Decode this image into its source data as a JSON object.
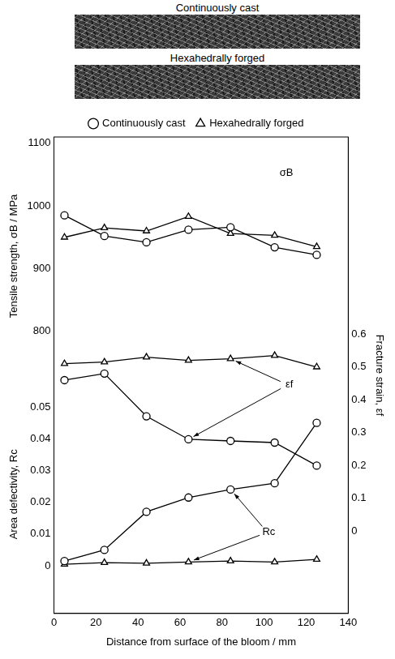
{
  "micrographs": [
    {
      "title": "Continuously cast"
    },
    {
      "title": "Hexahedrally forged"
    }
  ],
  "chart_data": [
    {
      "type": "line",
      "y_label": "Tensile strength, σB / MPa",
      "ylim": [
        730,
        1110
      ],
      "yticks": [
        800,
        900,
        1000,
        1100
      ],
      "y2_label": "Fracture strain, εf",
      "y2lim": [
        -0.25,
        1.2
      ],
      "y2ticks": [
        0,
        0.1,
        0.2,
        0.3,
        0.4,
        0.5,
        0.6
      ],
      "legend": "top",
      "grid": false,
      "annotations": [
        "σB",
        "εf"
      ],
      "x": [
        5,
        24,
        44,
        64,
        84,
        105,
        125
      ],
      "series": [
        {
          "name": "Continuously cast",
          "color": "#000000",
          "marker": "circle",
          "line_style": "solid",
          "values": [
            985,
            952,
            942,
            962,
            966,
            934,
            922
          ]
        },
        {
          "name": "Hexahedrally forged",
          "color": "#000000",
          "marker": "triangle",
          "line_style": "solid",
          "values": [
            950,
            965,
            960,
            983,
            956,
            953,
            935
          ]
        },
        {
          "name": "Continuously cast",
          "color": "#000000",
          "marker": "circle",
          "line_style": "solid",
          "axis": "y2",
          "values": [
            0.46,
            0.48,
            0.35,
            0.28,
            0.275,
            0.27,
            0.2
          ]
        },
        {
          "name": "Hexahedrally forged",
          "color": "#000000",
          "marker": "triangle",
          "line_style": "solid",
          "axis": "y2",
          "values": [
            0.51,
            0.515,
            0.53,
            0.52,
            0.525,
            0.535,
            0.5
          ]
        }
      ]
    },
    {
      "type": "line",
      "x_label": "Distance from surface of the bloom / mm",
      "xlim": [
        0,
        140
      ],
      "xticks": [
        0,
        20,
        40,
        60,
        80,
        100,
        120,
        140
      ],
      "y_label": "Area defectivity, Rc",
      "ylim": [
        -0.015,
        0.06
      ],
      "yticks": [
        0,
        0.01,
        0.02,
        0.03,
        0.04,
        0.05
      ],
      "grid": false,
      "annotations": [
        "Rc"
      ],
      "x": [
        5,
        24,
        44,
        64,
        84,
        105,
        125
      ],
      "series": [
        {
          "name": "Continuously cast",
          "color": "#000000",
          "marker": "circle",
          "line_style": "solid",
          "values": [
            0.0015,
            0.005,
            0.017,
            0.0215,
            0.024,
            0.026,
            0.045
          ]
        },
        {
          "name": "Hexahedrally forged",
          "color": "#000000",
          "marker": "triangle",
          "line_style": "solid",
          "values": [
            0.0005,
            0.001,
            0.0008,
            0.0012,
            0.0015,
            0.0012,
            0.002
          ]
        }
      ]
    }
  ]
}
